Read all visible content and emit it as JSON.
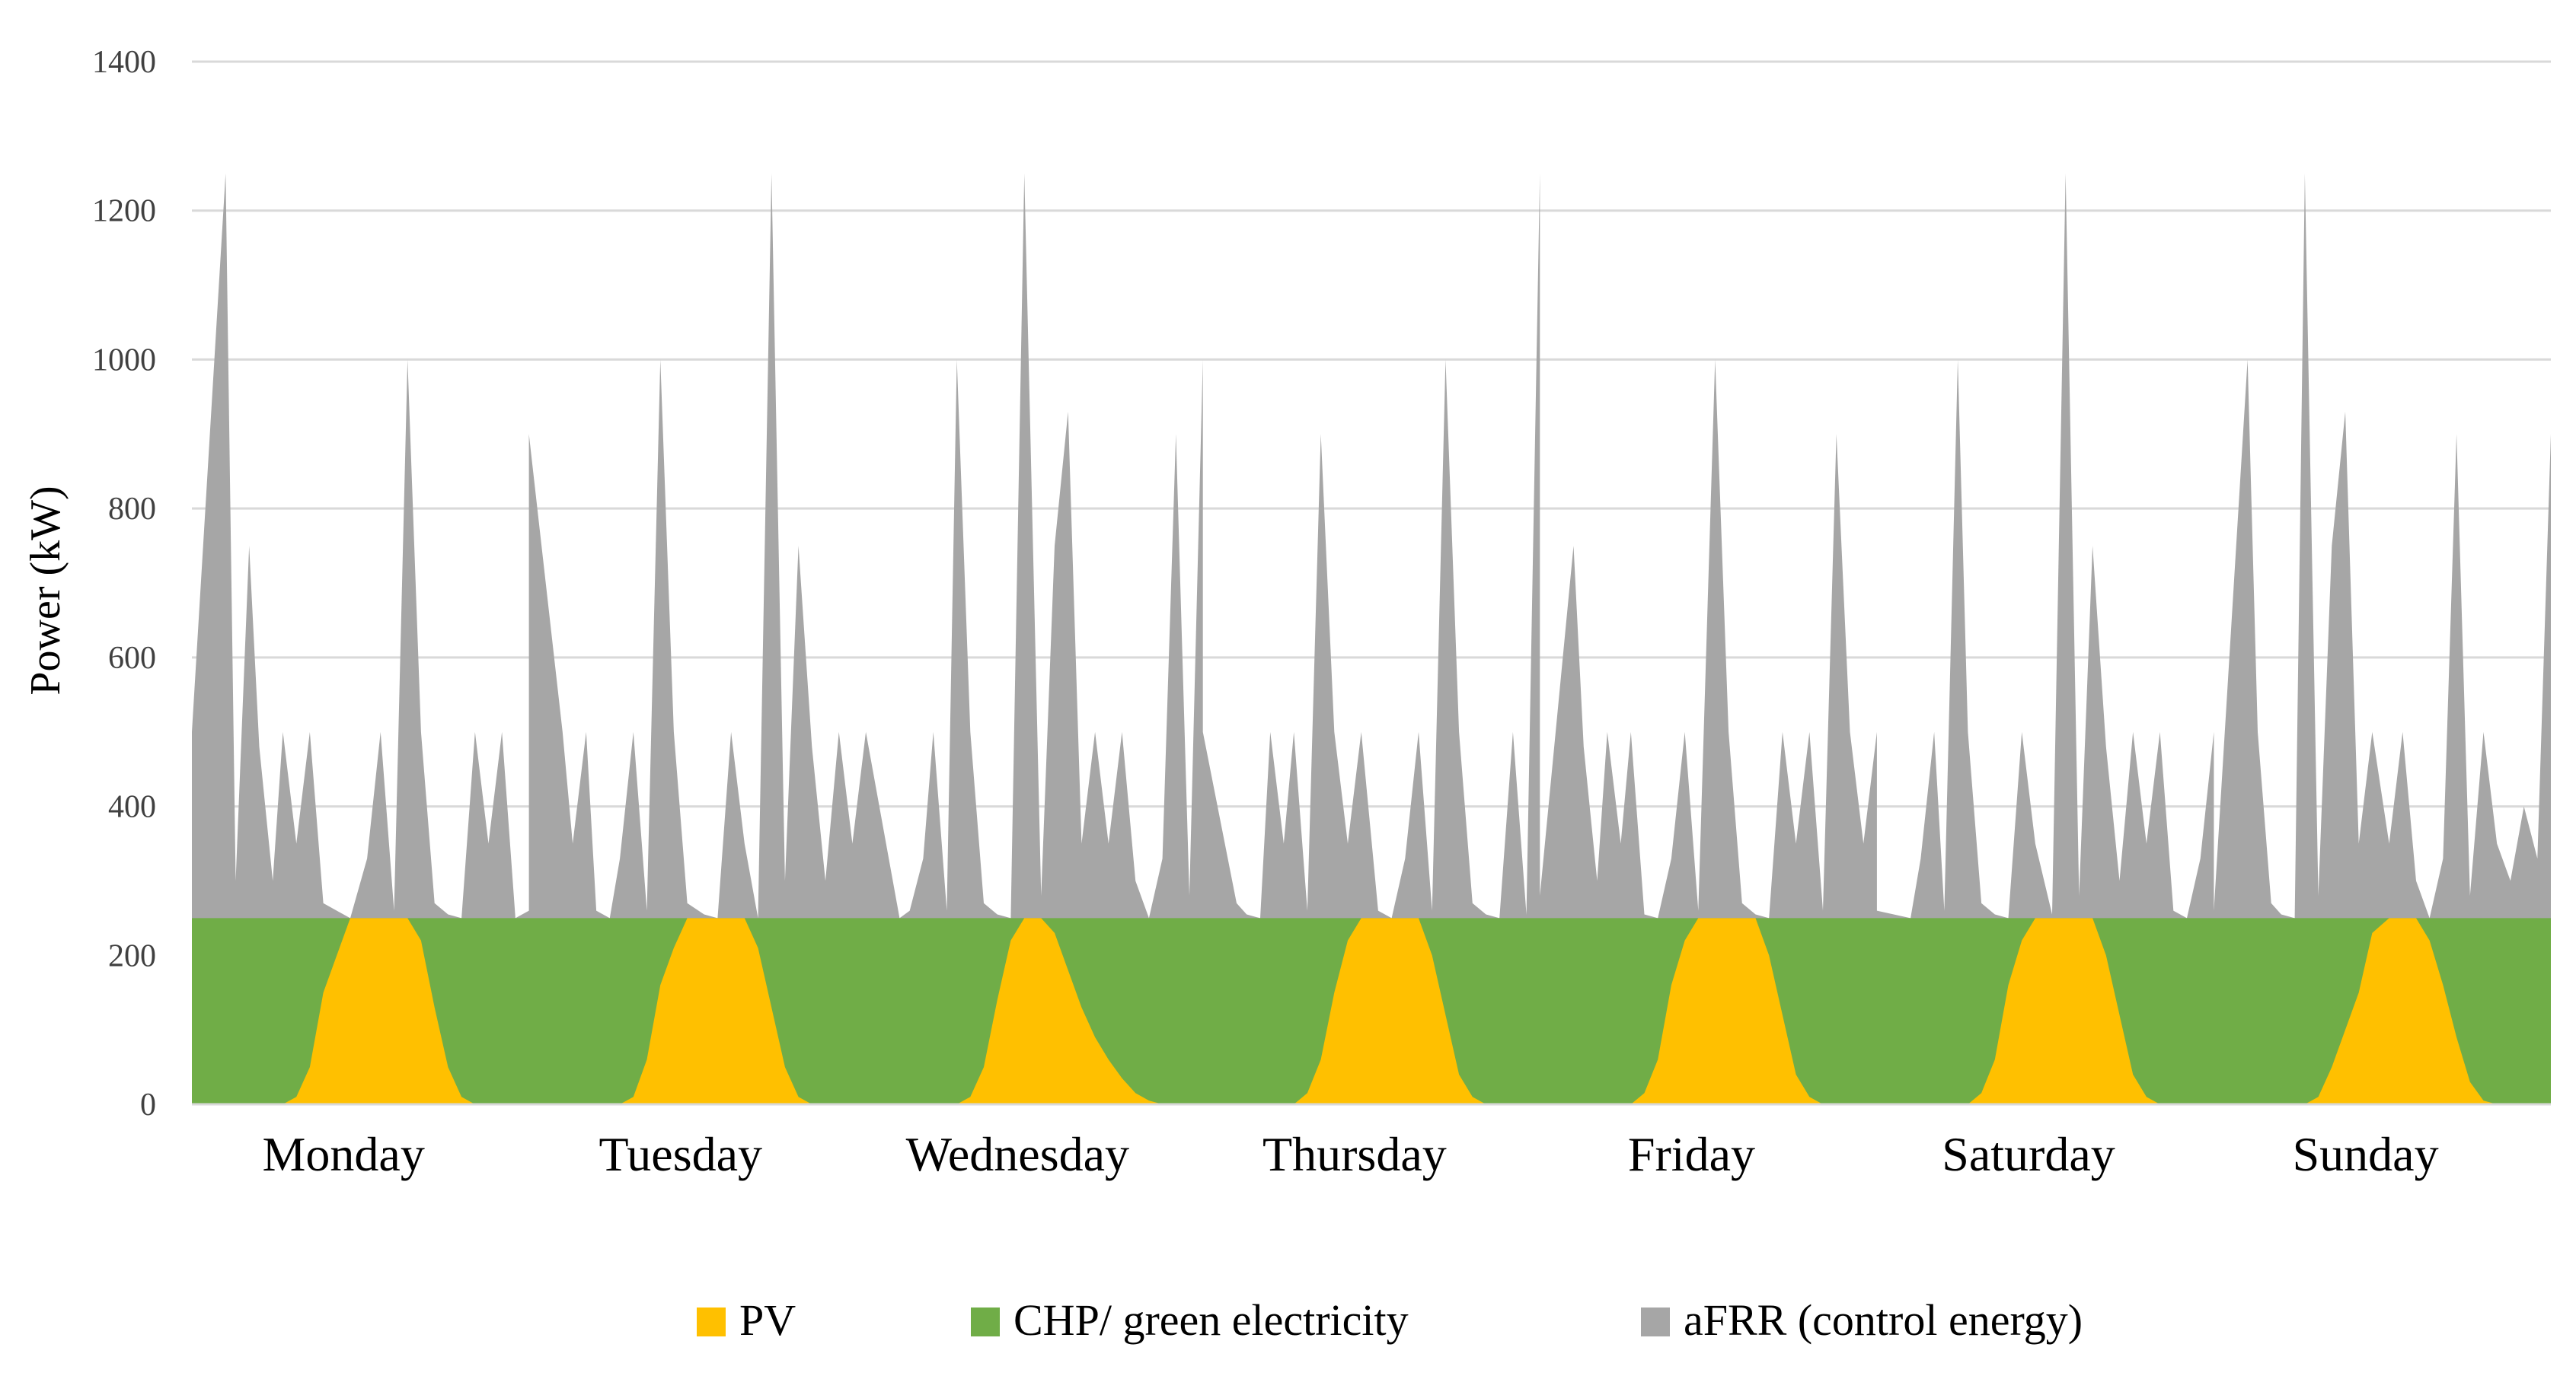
{
  "chart_data": {
    "type": "area",
    "title": "",
    "xlabel": "",
    "ylabel": "Power (kW)",
    "ylim": [
      0,
      1400
    ],
    "yticks": [
      0,
      200,
      400,
      600,
      800,
      1000,
      1200,
      1400
    ],
    "ytick_labels": [
      "0",
      "200",
      "400",
      "600",
      "800",
      "1000",
      "1200",
      "1400"
    ],
    "stacked": true,
    "grid": true,
    "legend_position": "bottom",
    "categories": [
      "Monday",
      "Tuesday",
      "Wednesday",
      "Thursday",
      "Friday",
      "Saturday",
      "Sunday"
    ],
    "x": [
      0,
      0.1,
      0.13,
      0.17,
      0.2,
      0.24,
      0.27,
      0.31,
      0.35,
      0.39,
      0.43,
      0.47,
      0.52,
      0.56,
      0.6,
      0.64,
      0.68,
      0.72,
      0.76,
      0.8,
      0.84,
      0.88,
      0.92,
      0.96,
      1
    ],
    "series": [
      {
        "name": "PV",
        "color": "#ffc000",
        "days": [
          [
            0,
            0,
            0,
            0,
            0,
            0,
            0,
            10,
            50,
            150,
            200,
            250,
            250,
            250,
            250,
            250,
            220,
            130,
            50,
            10,
            0,
            0,
            0,
            0,
            0
          ],
          [
            0,
            0,
            0,
            0,
            0,
            0,
            0,
            10,
            60,
            160,
            210,
            250,
            250,
            250,
            250,
            250,
            210,
            130,
            50,
            10,
            0,
            0,
            0,
            0,
            0
          ],
          [
            0,
            0,
            0,
            0,
            0,
            0,
            0,
            10,
            50,
            140,
            220,
            250,
            250,
            230,
            180,
            130,
            90,
            60,
            35,
            15,
            5,
            0,
            0,
            0,
            0
          ],
          [
            0,
            0,
            0,
            0,
            0,
            0,
            0,
            15,
            60,
            150,
            220,
            250,
            250,
            250,
            250,
            250,
            200,
            120,
            40,
            10,
            0,
            0,
            0,
            0,
            0
          ],
          [
            0,
            0,
            0,
            0,
            0,
            0,
            0,
            15,
            60,
            160,
            220,
            250,
            250,
            250,
            250,
            250,
            200,
            120,
            40,
            10,
            0,
            0,
            0,
            0,
            0
          ],
          [
            0,
            0,
            0,
            0,
            0,
            0,
            0,
            15,
            60,
            160,
            220,
            250,
            250,
            250,
            250,
            250,
            200,
            120,
            40,
            10,
            0,
            0,
            0,
            0,
            0
          ],
          [
            0,
            0,
            0,
            0,
            0,
            0,
            0,
            10,
            50,
            100,
            150,
            230,
            250,
            250,
            250,
            220,
            160,
            90,
            30,
            5,
            0,
            0,
            0,
            0,
            0
          ]
        ]
      },
      {
        "name": "CHP/ green electricity",
        "color": "#70ad47",
        "level": 250
      },
      {
        "name": "aFRR (control energy)",
        "color": "#a6a6a6",
        "days": [
          [
            500,
            1250,
            300,
            750,
            480,
            300,
            500,
            350,
            500,
            270,
            260,
            250,
            330,
            500,
            260,
            1000,
            500,
            270,
            255,
            250,
            500,
            350,
            500,
            250,
            260
          ],
          [
            900,
            500,
            350,
            500,
            260,
            250,
            330,
            500,
            260,
            1000,
            500,
            270,
            255,
            250,
            500,
            350,
            250,
            1250,
            300,
            750,
            480,
            300,
            500,
            350,
            500
          ],
          [
            500,
            250,
            260,
            330,
            500,
            260,
            1000,
            500,
            270,
            255,
            250,
            1250,
            280,
            750,
            930,
            350,
            500,
            350,
            500,
            300,
            250,
            330,
            900,
            280,
            1000
          ],
          [
            500,
            270,
            255,
            250,
            500,
            350,
            500,
            260,
            900,
            500,
            350,
            500,
            260,
            250,
            330,
            500,
            260,
            1000,
            500,
            270,
            255,
            250,
            500,
            255,
            1250
          ],
          [
            280,
            750,
            480,
            300,
            500,
            350,
            500,
            255,
            250,
            330,
            500,
            260,
            1000,
            500,
            270,
            255,
            250,
            500,
            350,
            500,
            260,
            900,
            500,
            350,
            500
          ],
          [
            260,
            250,
            330,
            500,
            260,
            1000,
            500,
            270,
            255,
            250,
            500,
            350,
            255,
            1250,
            280,
            750,
            480,
            300,
            500,
            350,
            500,
            260,
            250,
            330,
            500
          ],
          [
            260,
            1000,
            500,
            270,
            255,
            250,
            1250,
            280,
            750,
            930,
            350,
            500,
            350,
            500,
            300,
            250,
            330,
            900,
            280,
            500,
            350,
            300,
            400,
            330,
            900
          ]
        ]
      }
    ]
  }
}
